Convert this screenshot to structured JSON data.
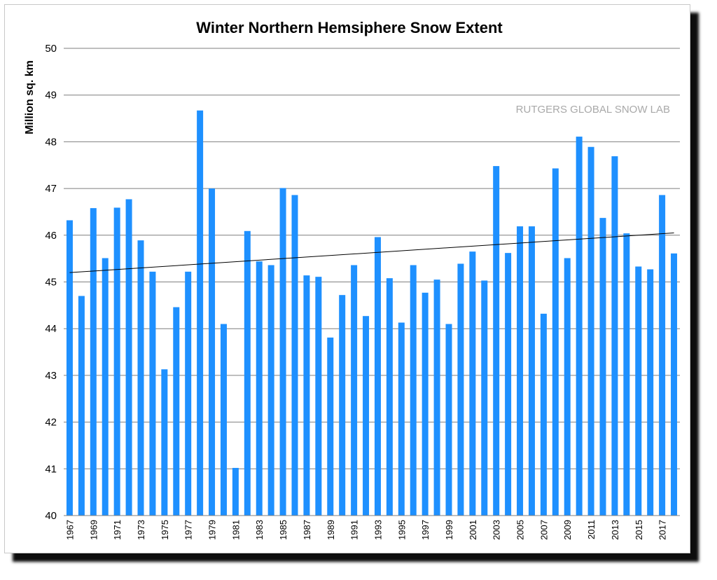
{
  "chart_data": {
    "type": "bar",
    "title": "Winter Northern Hemsiphere Snow Extent",
    "ylabel": "Million sq. km",
    "xlabel": "",
    "annotation": "RUTGERS GLOBAL SNOW LAB",
    "ylim": [
      40,
      50
    ],
    "yticks": [
      40,
      41,
      42,
      43,
      44,
      45,
      46,
      47,
      48,
      49,
      50
    ],
    "grid": "horizontal",
    "legend": "none",
    "bar_color": "#1e90ff",
    "trendline_color": "#000000",
    "categories": [
      "1967",
      "1968",
      "1969",
      "1970",
      "1971",
      "1972",
      "1973",
      "1974",
      "1975",
      "1976",
      "1977",
      "1978",
      "1979",
      "1980",
      "1981",
      "1982",
      "1983",
      "1984",
      "1985",
      "1986",
      "1987",
      "1988",
      "1989",
      "1990",
      "1991",
      "1992",
      "1993",
      "1994",
      "1995",
      "1996",
      "1997",
      "1998",
      "1999",
      "2000",
      "2001",
      "2002",
      "2003",
      "2004",
      "2005",
      "2006",
      "2007",
      "2008",
      "2009",
      "2010",
      "2011",
      "2012",
      "2013",
      "2014",
      "2015",
      "2016",
      "2017",
      "2018"
    ],
    "xtick_labels": [
      "1967",
      "1969",
      "1971",
      "1973",
      "1975",
      "1977",
      "1979",
      "1981",
      "1983",
      "1985",
      "1987",
      "1989",
      "1991",
      "1993",
      "1995",
      "1997",
      "1999",
      "2001",
      "2003",
      "2005",
      "2007",
      "2009",
      "2011",
      "2013",
      "2015",
      "2017"
    ],
    "values": [
      46.32,
      44.7,
      46.58,
      45.51,
      46.59,
      46.77,
      45.89,
      45.22,
      43.13,
      44.46,
      45.22,
      48.67,
      47.0,
      44.1,
      41.02,
      46.09,
      45.44,
      45.36,
      47.01,
      46.86,
      45.14,
      45.11,
      43.81,
      44.72,
      45.36,
      44.27,
      45.96,
      45.08,
      44.13,
      45.36,
      44.77,
      45.05,
      44.1,
      45.39,
      45.65,
      45.03,
      47.48,
      45.62,
      46.19,
      46.19,
      44.32,
      47.43,
      45.51,
      48.11,
      47.89,
      46.37,
      47.69,
      46.04,
      45.33,
      45.27,
      46.86,
      45.61
    ],
    "trendline": {
      "start": 45.2,
      "end": 46.05
    }
  }
}
